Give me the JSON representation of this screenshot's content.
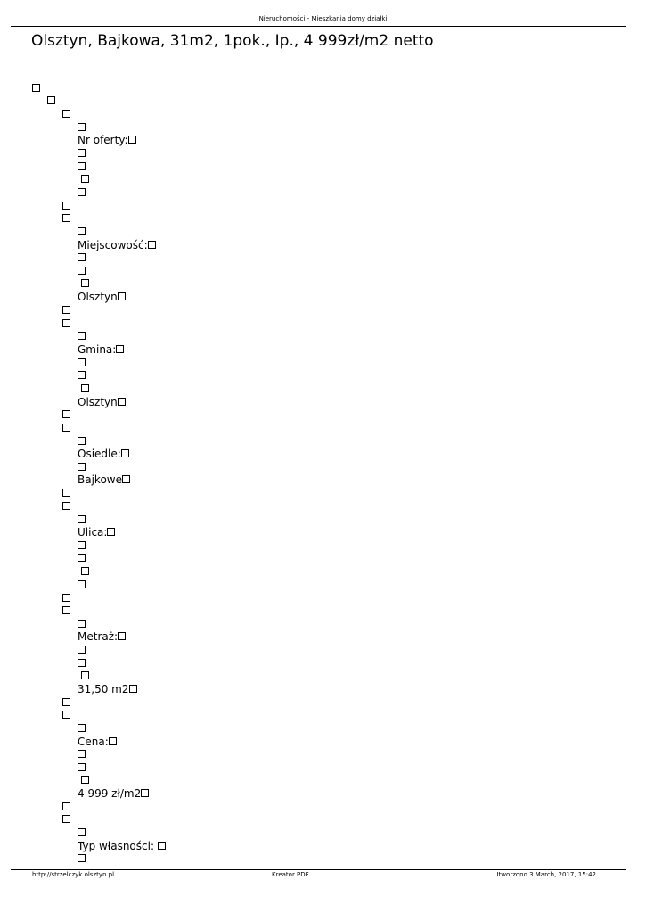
{
  "header": {
    "site_title": "Nieruchomości - Mieszkania domy działki"
  },
  "listing": {
    "title": "Olsztyn, Bajkowa, 31m2, 1pok., Ip., 4 999zł/m2 netto"
  },
  "fields": {
    "offer_number_label": "Nr oferty:",
    "locality_label": "Miejscowość:",
    "locality_value": "Olsztyn",
    "commune_label": "Gmina:",
    "commune_value": "Olsztyn",
    "estate_label": "Osiedle:",
    "estate_value": "Bajkowe",
    "street_label": "Ulica:",
    "area_label": "Metraż:",
    "area_value": "31,50 m2",
    "price_label": "Cena:",
    "price_value": "4 999 zł/m2",
    "ownership_label": "Typ własności: "
  },
  "footer": {
    "url": "http://strzelczyk.olsztyn.pl",
    "generator": "Kreator PDF",
    "created": "Utworzono 3 March, 2017, 15:42"
  }
}
